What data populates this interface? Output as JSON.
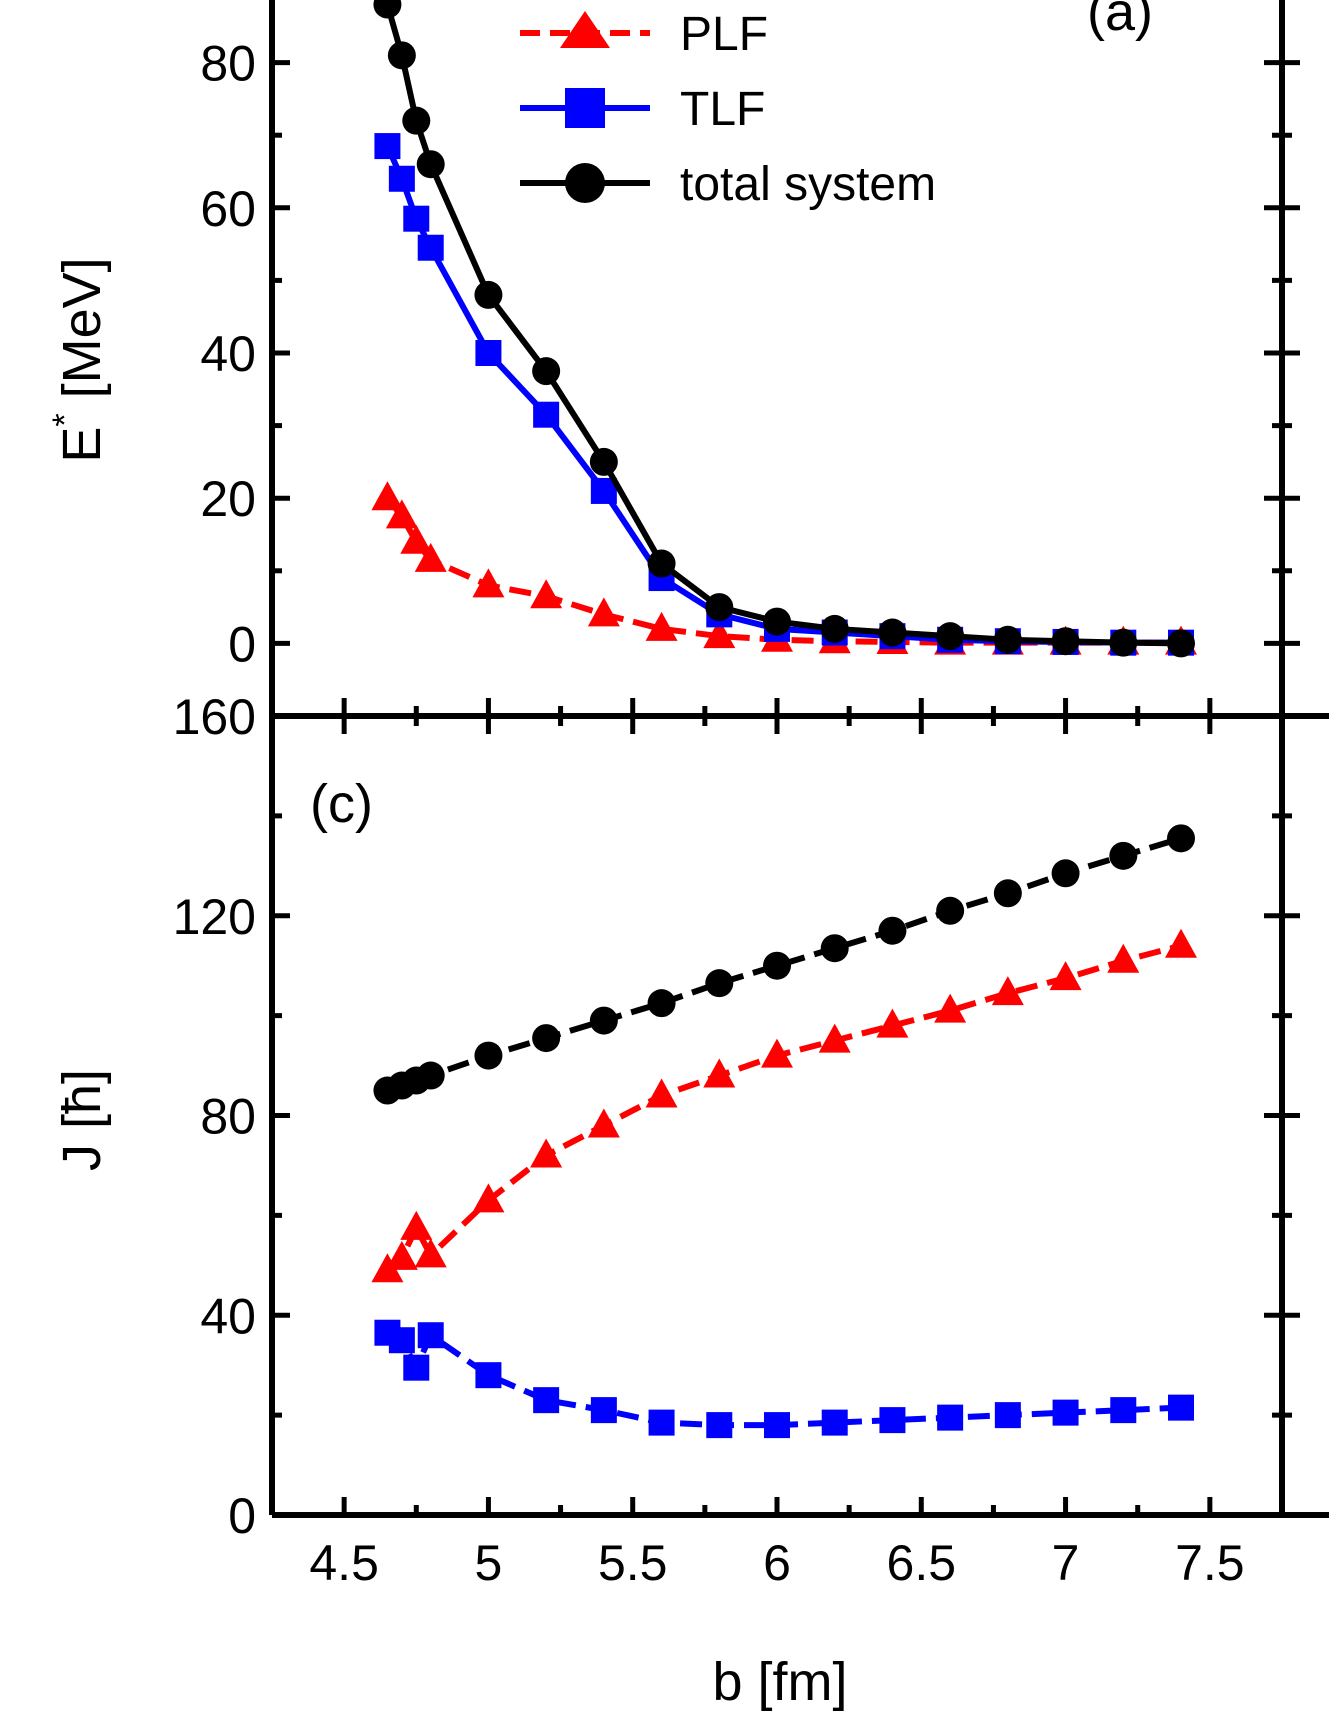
{
  "chart_data": [
    {
      "panel": "(a)",
      "type": "line",
      "ylabel": "E",
      "ylabel_sup": "*",
      "ylabel_unit": " [MeV]",
      "xlim": [
        4.25,
        7.75
      ],
      "ylim": [
        -10,
        90
      ],
      "yticks": [
        0,
        20,
        40,
        60,
        80
      ],
      "legend": "top-center",
      "series": [
        {
          "name": "PLF",
          "color": "#ff0000",
          "marker": "triangle",
          "dash": "dashed",
          "x": [
            4.65,
            4.7,
            4.75,
            4.8,
            5.0,
            5.2,
            5.4,
            5.6,
            5.8,
            6.0,
            6.2,
            6.4,
            6.6,
            6.8,
            7.0,
            7.2,
            7.4
          ],
          "y": [
            20,
            17.5,
            14,
            11.5,
            8,
            6.5,
            4,
            2,
            1,
            0.5,
            0.3,
            0.2,
            0.1,
            0.1,
            0.1,
            0.1,
            0.1
          ]
        },
        {
          "name": "TLF",
          "color": "#0000ff",
          "marker": "square",
          "dash": "solid",
          "x": [
            4.65,
            4.7,
            4.75,
            4.8,
            5.0,
            5.2,
            5.4,
            5.6,
            5.8,
            6.0,
            6.2,
            6.4,
            6.6,
            6.8,
            7.0,
            7.2,
            7.4
          ],
          "y": [
            68.5,
            64,
            58.5,
            54.5,
            40,
            31.5,
            21,
            9,
            4,
            2,
            1.5,
            1,
            0.5,
            0.3,
            0.2,
            0.1,
            0.1
          ]
        },
        {
          "name": "total system",
          "color": "#000000",
          "marker": "circle",
          "dash": "solid",
          "x": [
            4.65,
            4.7,
            4.75,
            4.8,
            5.0,
            5.2,
            5.4,
            5.6,
            5.8,
            6.0,
            6.2,
            6.4,
            6.6,
            6.8,
            7.0,
            7.2,
            7.4
          ],
          "y": [
            88,
            81,
            72,
            66,
            48,
            37.5,
            25,
            11,
            5,
            3,
            2,
            1.5,
            1,
            0.5,
            0.3,
            0.1,
            0
          ]
        }
      ]
    },
    {
      "panel": "(c)",
      "type": "line",
      "xlabel": "b [fm]",
      "ylabel": "J [ħ]",
      "xlim": [
        4.25,
        7.75
      ],
      "ylim": [
        0,
        160
      ],
      "xticks": [
        4.5,
        5,
        5.5,
        6,
        6.5,
        7,
        7.5
      ],
      "yticks": [
        0,
        40,
        80,
        120,
        160
      ],
      "series": [
        {
          "name": "PLF",
          "color": "#ff0000",
          "marker": "triangle",
          "dash": "dashed",
          "x": [
            4.65,
            4.7,
            4.75,
            4.8,
            5.0,
            5.2,
            5.4,
            5.6,
            5.8,
            6.0,
            6.2,
            6.4,
            6.6,
            6.8,
            7.0,
            7.2,
            7.4
          ],
          "y": [
            49,
            51.5,
            57.5,
            52,
            63,
            72,
            78,
            84,
            88,
            92,
            95,
            98,
            101,
            104.5,
            107.5,
            111,
            114
          ]
        },
        {
          "name": "TLF",
          "color": "#0000ff",
          "marker": "square",
          "dash": "dashed",
          "x": [
            4.65,
            4.7,
            4.75,
            4.8,
            5.0,
            5.2,
            5.4,
            5.6,
            5.8,
            6.0,
            6.2,
            6.4,
            6.6,
            6.8,
            7.0,
            7.2,
            7.4
          ],
          "y": [
            36.5,
            35,
            29.5,
            36,
            28,
            23,
            21,
            18.5,
            18,
            18,
            18.5,
            19,
            19.5,
            20,
            20.5,
            21,
            21.5
          ]
        },
        {
          "name": "total system",
          "color": "#000000",
          "marker": "circle",
          "dash": "dashed",
          "x": [
            4.65,
            4.7,
            4.75,
            4.8,
            5.0,
            5.2,
            5.4,
            5.6,
            5.8,
            6.0,
            6.2,
            6.4,
            6.6,
            6.8,
            7.0,
            7.2,
            7.4
          ],
          "y": [
            85,
            86,
            87,
            88,
            92,
            95.5,
            99,
            102.5,
            106.5,
            110,
            113.5,
            117,
            121,
            124.5,
            128.5,
            132,
            135.5
          ]
        }
      ]
    }
  ],
  "legend": {
    "items": [
      "PLF",
      "TLF",
      "total system"
    ]
  },
  "panels": {
    "a_label": "(a)",
    "c_label": "(c)"
  }
}
